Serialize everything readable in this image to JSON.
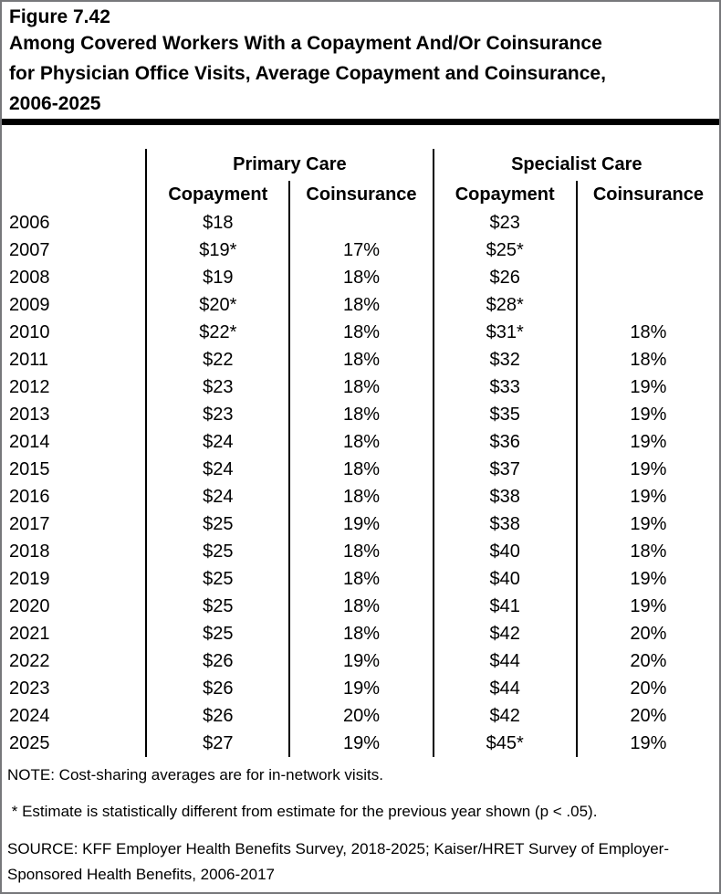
{
  "header": {
    "figure_label": "Figure 7.42",
    "title_lines": [
      "Among Covered Workers With a Copayment And/Or Coinsurance",
      "for Physician Office Visits, Average Copayment and Coinsurance,",
      "2006-2025"
    ]
  },
  "table": {
    "group_primary": "Primary Care",
    "group_specialist": "Specialist Care",
    "col_copayment": "Copayment",
    "col_coinsurance": "Coinsurance"
  },
  "chart_data": {
    "type": "table",
    "title": "Among Covered Workers With a Copayment And/Or Coinsurance for Physician Office Visits, Average Copayment and Coinsurance, 2006-2025",
    "columns": [
      "Year",
      "Primary Care Copayment",
      "Primary Care Coinsurance",
      "Specialist Care Copayment",
      "Specialist Care Coinsurance"
    ],
    "rows": [
      [
        "2006",
        "$18",
        "",
        "$23",
        ""
      ],
      [
        "2007",
        "$19*",
        "17%",
        "$25*",
        ""
      ],
      [
        "2008",
        "$19",
        "18%",
        "$26",
        ""
      ],
      [
        "2009",
        "$20*",
        "18%",
        "$28*",
        ""
      ],
      [
        "2010",
        "$22*",
        "18%",
        "$31*",
        "18%"
      ],
      [
        "2011",
        "$22",
        "18%",
        "$32",
        "18%"
      ],
      [
        "2012",
        "$23",
        "18%",
        "$33",
        "19%"
      ],
      [
        "2013",
        "$23",
        "18%",
        "$35",
        "19%"
      ],
      [
        "2014",
        "$24",
        "18%",
        "$36",
        "19%"
      ],
      [
        "2015",
        "$24",
        "18%",
        "$37",
        "19%"
      ],
      [
        "2016",
        "$24",
        "18%",
        "$38",
        "19%"
      ],
      [
        "2017",
        "$25",
        "19%",
        "$38",
        "19%"
      ],
      [
        "2018",
        "$25",
        "18%",
        "$40",
        "18%"
      ],
      [
        "2019",
        "$25",
        "18%",
        "$40",
        "19%"
      ],
      [
        "2020",
        "$25",
        "18%",
        "$41",
        "19%"
      ],
      [
        "2021",
        "$25",
        "18%",
        "$42",
        "20%"
      ],
      [
        "2022",
        "$26",
        "19%",
        "$44",
        "20%"
      ],
      [
        "2023",
        "$26",
        "19%",
        "$44",
        "20%"
      ],
      [
        "2024",
        "$26",
        "20%",
        "$42",
        "20%"
      ],
      [
        "2025",
        "$27",
        "19%",
        "$45*",
        "19%"
      ]
    ]
  },
  "footnotes": {
    "note": "NOTE: Cost-sharing averages are for in-network visits.",
    "asterisk": " * Estimate is statistically different from estimate for the previous year shown (p < .05).",
    "source_lines": [
      "SOURCE: KFF Employer Health Benefits Survey, 2018-2025; Kaiser/HRET Survey of Employer-",
      "Sponsored Health Benefits, 2006-2017"
    ]
  },
  "colors": {
    "background": "#ffffff",
    "text": "#000000",
    "table_lines": "#000000",
    "title_rule": "#000000",
    "outer_border": "#77787b"
  }
}
